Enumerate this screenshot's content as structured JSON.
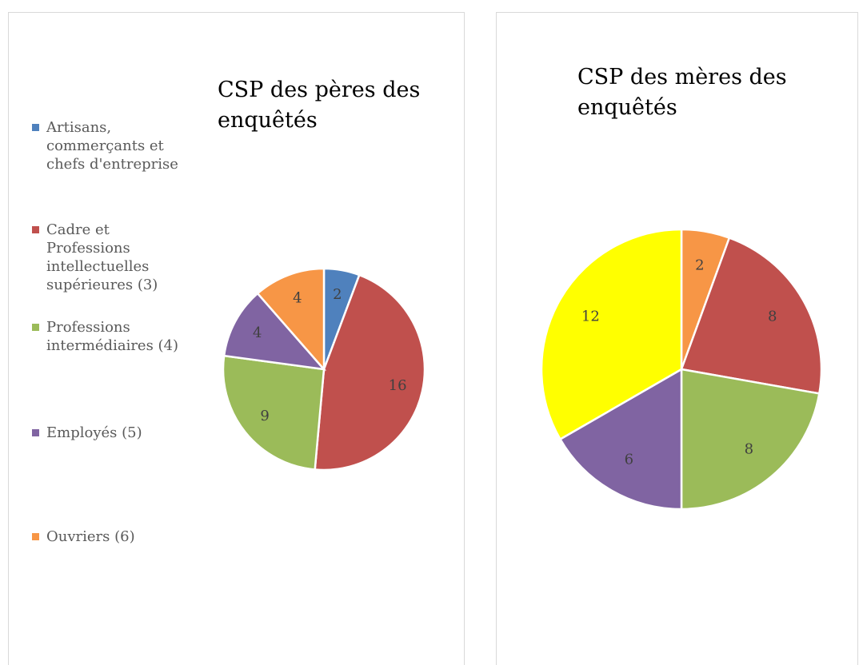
{
  "chart_data": [
    {
      "type": "pie",
      "title": "CSP des pères des enquêtés",
      "categories": [
        "Artisans, commerçants et chefs d'entreprise",
        "Cadre et Professions intellectuelles supérieures (3)",
        "Professions intermédiaires (4)",
        "Employés (5)",
        "Ouvriers (6)"
      ],
      "values": [
        2,
        16,
        9,
        4,
        4
      ],
      "colors": [
        "#4f81bd",
        "#c0504d",
        "#9bbb59",
        "#8064a2",
        "#f79646"
      ],
      "legend": "left"
    },
    {
      "type": "pie",
      "title": "CSP des mères des enquêtés",
      "values": [
        2,
        8,
        8,
        6,
        12
      ],
      "colors": [
        "#f79646",
        "#c0504d",
        "#9bbb59",
        "#8064a2",
        "#ffff00"
      ]
    }
  ]
}
